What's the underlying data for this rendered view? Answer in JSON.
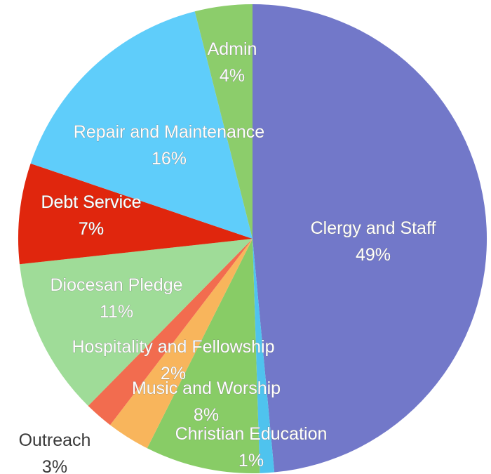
{
  "chart_data": {
    "type": "pie",
    "title": "",
    "slices": [
      {
        "label": "Clergy and Staff",
        "percent_label": "49%",
        "value": 49,
        "color": "#7278c9"
      },
      {
        "label": "Christian Education",
        "percent_label": "1%",
        "value": 1,
        "color": "#4fc3ee"
      },
      {
        "label": "Music and Worship",
        "percent_label": "8%",
        "value": 8,
        "color": "#88cc66"
      },
      {
        "label": "Outreach",
        "percent_label": "3%",
        "value": 3,
        "color": "#f8b55c"
      },
      {
        "label": "Hospitality and Fellowship",
        "percent_label": "2%",
        "value": 2,
        "color": "#f26c4f"
      },
      {
        "label": "Diocesan Pledge",
        "percent_label": "11%",
        "value": 11,
        "color": "#9fdc98"
      },
      {
        "label": "Debt Service",
        "percent_label": "7%",
        "value": 7,
        "color": "#e0260d"
      },
      {
        "label": "Repair and Maintenance",
        "percent_label": "16%",
        "value": 16,
        "color": "#5fcdfa"
      },
      {
        "label": "Admin",
        "percent_label": "4%",
        "value": 4,
        "color": "#8ccd6b"
      }
    ]
  }
}
